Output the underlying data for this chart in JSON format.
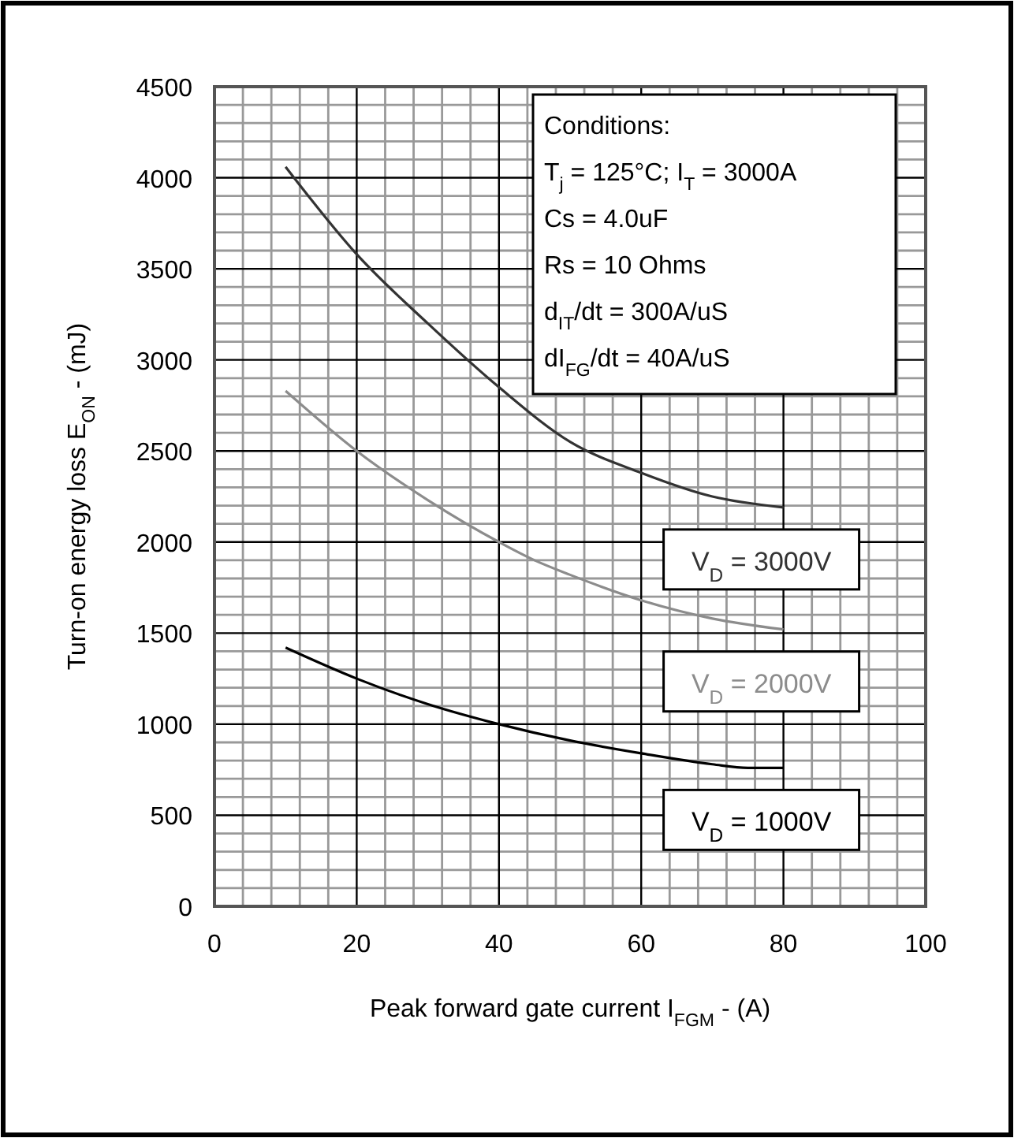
{
  "chart_data": {
    "type": "line",
    "xlabel": "Peak forward gate current I$_{FGM}$ - (A)",
    "ylabel": "Turn-on energy loss E$_{ON}$ - (mJ)",
    "xlim": [
      0,
      100
    ],
    "xticks": [
      0,
      20,
      40,
      60,
      80,
      100
    ],
    "ylim": [
      0,
      4500
    ],
    "yticks": [
      0,
      500,
      1000,
      1500,
      2000,
      2500,
      3000,
      3500,
      4000,
      4500
    ],
    "grid": true,
    "line_style": "solid",
    "series": [
      {
        "name": "V$_{D}$ = 3000V",
        "color": "#333333",
        "x": [
          10,
          20,
          30,
          40,
          50,
          60,
          70,
          80
        ],
        "values": [
          4060,
          3580,
          3200,
          2850,
          2550,
          2380,
          2250,
          2190
        ]
      },
      {
        "name": "V$_{D}$ = 2000V",
        "color": "#8c8c8c",
        "x": [
          10,
          20,
          30,
          40,
          45,
          50,
          60,
          70,
          80
        ],
        "values": [
          2830,
          2500,
          2230,
          2000,
          1900,
          1820,
          1680,
          1580,
          1520
        ]
      },
      {
        "name": "V$_{D}$ = 1000V",
        "color": "#000000",
        "x": [
          10,
          20,
          30,
          40,
          50,
          60,
          70,
          75,
          80
        ],
        "values": [
          1420,
          1250,
          1110,
          1000,
          910,
          840,
          780,
          760,
          760
        ]
      }
    ],
    "annotations": [
      "Conditions:",
      "T$_{j}$ = 125°C; I$_{T}$ = 3000A",
      "Cs = 4.0uF",
      "Rs = 10 Ohms",
      "d$_{IT}$/dt = 300A/uS",
      "dI$_{FG}$/dt = 40A/uS"
    ]
  }
}
